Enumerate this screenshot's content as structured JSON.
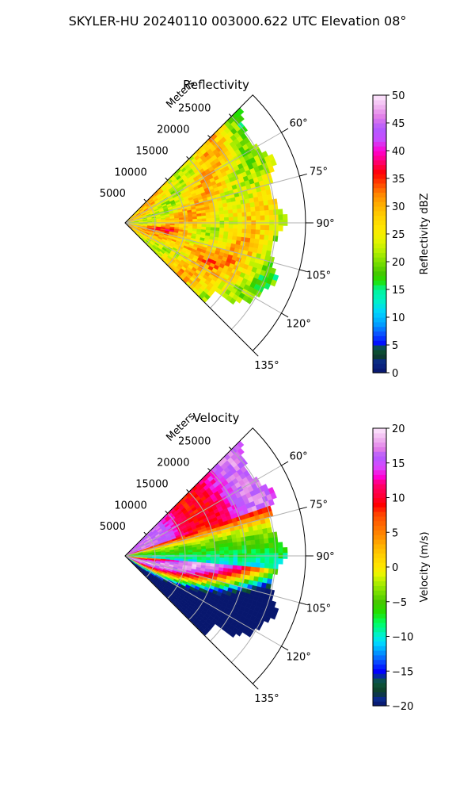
{
  "page_title": "SKYLER-HU  20240110  003000.622 UTC Elevation 08°",
  "chart_data": [
    {
      "type": "heatmap",
      "subtype": "polar-sector (PPI)",
      "title": "Reflectivity",
      "range_label": "Meters",
      "range_ticks": [
        5000,
        10000,
        15000,
        20000,
        25000
      ],
      "range_tick_labels": [
        "5000",
        "10000",
        "15000",
        "20000",
        "25000"
      ],
      "range_max": 30000,
      "data_range_max": 27000,
      "azimuth_range_deg": [
        45,
        135
      ],
      "azimuth_ticks_deg": [
        60,
        75,
        90,
        105,
        120,
        135
      ],
      "azimuth_tick_labels": [
        "60°",
        "75°",
        "90°",
        "105°",
        "120°",
        "135°"
      ],
      "colorbar": {
        "label": "Reflectivity dBZ",
        "min": 0,
        "max": 50,
        "ticks": [
          0,
          5,
          10,
          15,
          20,
          25,
          30,
          35,
          40,
          45,
          50
        ],
        "tick_labels": [
          "0",
          "5",
          "10",
          "15",
          "20",
          "25",
          "30",
          "35",
          "40",
          "45",
          "50"
        ],
        "colormap": "NWS reflectivity"
      },
      "field_description": "dBZ mostly 20–35; stronger 33–40 cores in bands near 100°–115° at 5–20 km; weaker 18–24 dBZ along outer edge"
    },
    {
      "type": "heatmap",
      "subtype": "polar-sector (PPI)",
      "title": "Velocity",
      "range_label": "Meters",
      "range_ticks": [
        5000,
        10000,
        15000,
        20000,
        25000
      ],
      "range_tick_labels": [
        "5000",
        "10000",
        "15000",
        "20000",
        "25000"
      ],
      "range_max": 30000,
      "data_range_max": 27000,
      "azimuth_range_deg": [
        45,
        135
      ],
      "azimuth_ticks_deg": [
        60,
        75,
        90,
        105,
        120,
        135
      ],
      "azimuth_tick_labels": [
        "60°",
        "75°",
        "90°",
        "105°",
        "120°",
        "135°"
      ],
      "colorbar": {
        "label": "Velocity (m/s)",
        "min": -20,
        "max": 20,
        "ticks": [
          -20,
          -15,
          -10,
          -5,
          0,
          5,
          10,
          15,
          20
        ],
        "tick_labels": [
          "−20",
          "−15",
          "−10",
          "−5",
          "0",
          "5",
          "10",
          "15",
          "20"
        ],
        "colormap": "NWS velocity"
      },
      "field_description": "Folded velocity bands: +13 to +18 m/s near 50°–70°, ~0 to −10 m/s near 80°–95°, aliased bands near 100°–130°"
    }
  ]
}
